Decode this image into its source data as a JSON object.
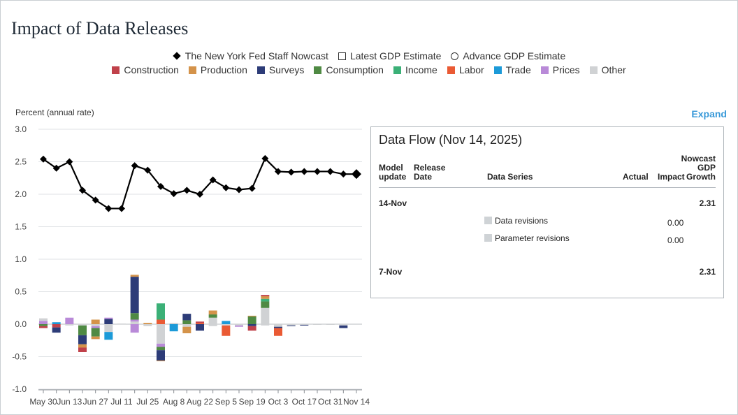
{
  "title": "Impact of Data Releases",
  "expand_label": "Expand",
  "legend_top": [
    {
      "label": "The New York Fed Staff Nowcast",
      "marker": "filled-diamond"
    },
    {
      "label": "Latest GDP Estimate",
      "marker": "open-square"
    },
    {
      "label": "Advance GDP Estimate",
      "marker": "open-circle"
    }
  ],
  "legend_categories": [
    {
      "label": "Construction",
      "color": "#c0414a"
    },
    {
      "label": "Production",
      "color": "#d4934a"
    },
    {
      "label": "Surveys",
      "color": "#2d3c78"
    },
    {
      "label": "Consumption",
      "color": "#4f8a43"
    },
    {
      "label": "Income",
      "color": "#3bb077"
    },
    {
      "label": "Labor",
      "color": "#ea5a34"
    },
    {
      "label": "Trade",
      "color": "#1c9ad8"
    },
    {
      "label": "Prices",
      "color": "#b98ad8"
    },
    {
      "label": "Other",
      "color": "#d0d2d4"
    }
  ],
  "chart_data": {
    "type": "line+stacked-bar",
    "ylabel": "Percent (annual rate)",
    "ylim": [
      -1.0,
      3.0
    ],
    "yticks": [
      "3.0",
      "2.5",
      "2.0",
      "1.5",
      "1.0",
      "0.5",
      "0.0",
      "-0.5",
      "-1.0"
    ],
    "ytick_values": [
      3.0,
      2.5,
      2.0,
      1.5,
      1.0,
      0.5,
      0.0,
      -0.5,
      -1.0
    ],
    "xtick_labels": [
      "May 30",
      "Jun 13",
      "Jun 27",
      "Jul 11",
      "Jul 25",
      "Aug 8",
      "Aug 22",
      "Sep 5",
      "Sep 19",
      "Oct 3",
      "Oct 17",
      "Oct 31",
      "Nov 14"
    ],
    "dates": [
      "May 30",
      "Jun 6",
      "Jun 13",
      "Jun 20",
      "Jun 27",
      "Jul 4",
      "Jul 11",
      "Jul 18",
      "Jul 25",
      "Aug 1",
      "Aug 8",
      "Aug 15",
      "Aug 22",
      "Aug 29",
      "Sep 5",
      "Sep 12",
      "Sep 19",
      "Sep 26",
      "Oct 3",
      "Oct 10",
      "Oct 17",
      "Oct 24",
      "Oct 31",
      "Nov 7",
      "Nov 14"
    ],
    "nowcast": [
      2.54,
      2.4,
      2.5,
      2.06,
      1.91,
      1.78,
      1.78,
      2.44,
      2.37,
      2.12,
      2.01,
      2.06,
      2.0,
      2.22,
      2.1,
      2.07,
      2.09,
      2.55,
      2.35,
      2.34,
      2.35,
      2.35,
      2.35,
      2.31,
      2.31
    ],
    "bars": [
      [
        [
          "Prices",
          0.05
        ],
        [
          "Other",
          0.04
        ],
        [
          "Consumption",
          -0.03
        ],
        [
          "Construction",
          -0.03
        ]
      ],
      [
        [
          "Trade",
          0.03
        ],
        [
          "Construction",
          -0.05
        ],
        [
          "Surveys",
          -0.08
        ]
      ],
      [
        [
          "Prices",
          0.1
        ],
        [
          "Other",
          -0.02
        ]
      ],
      [
        [
          "Other",
          -0.02
        ],
        [
          "Consumption",
          -0.15
        ],
        [
          "Surveys",
          -0.14
        ],
        [
          "Production",
          -0.05
        ],
        [
          "Construction",
          -0.07
        ]
      ],
      [
        [
          "Production",
          0.07
        ],
        [
          "Other",
          -0.03
        ],
        [
          "Prices",
          -0.03
        ],
        [
          "Consumption",
          -0.13
        ],
        [
          "Production",
          -0.04
        ]
      ],
      [
        [
          "Surveys",
          0.08
        ],
        [
          "Prices",
          0.02
        ],
        [
          "Other",
          -0.12
        ],
        [
          "Trade",
          -0.12
        ]
      ],
      [
        [
          "Other",
          0.01
        ]
      ],
      [
        [
          "Other",
          0.04
        ],
        [
          "Prices",
          0.03
        ],
        [
          "Consumption",
          0.1
        ],
        [
          "Surveys",
          0.56
        ],
        [
          "Production",
          0.03
        ],
        [
          "Prices",
          -0.13
        ]
      ],
      [
        [
          "Production",
          0.02
        ],
        [
          "Other",
          -0.03
        ]
      ],
      [
        [
          "Labor",
          0.07
        ],
        [
          "Income",
          0.25
        ],
        [
          "Other",
          -0.3
        ],
        [
          "Prices",
          -0.05
        ],
        [
          "Consumption",
          -0.05
        ],
        [
          "Surveys",
          -0.16
        ],
        [
          "Production",
          -0.01
        ]
      ],
      [
        [
          "Other",
          0.02
        ],
        [
          "Trade",
          -0.11
        ]
      ],
      [
        [
          "Consumption",
          0.06
        ],
        [
          "Surveys",
          0.1
        ],
        [
          "Other",
          -0.04
        ],
        [
          "Production",
          -0.1
        ]
      ],
      [
        [
          "Labor",
          0.02
        ],
        [
          "Construction",
          0.02
        ],
        [
          "Surveys",
          -0.1
        ]
      ],
      [
        [
          "Other",
          0.1
        ],
        [
          "Consumption",
          0.05
        ],
        [
          "Production",
          0.06
        ],
        [
          "Other",
          -0.03
        ]
      ],
      [
        [
          "Trade",
          0.05
        ],
        [
          "Other",
          -0.02
        ],
        [
          "Labor",
          -0.16
        ]
      ],
      [
        [
          "Other",
          -0.02
        ],
        [
          "Prices",
          -0.02
        ]
      ],
      [
        [
          "Consumption",
          0.12
        ],
        [
          "Production",
          0.01
        ],
        [
          "Surveys",
          -0.03
        ],
        [
          "Construction",
          -0.07
        ]
      ],
      [
        [
          "Other",
          0.25
        ],
        [
          "Consumption",
          0.1
        ],
        [
          "Income",
          0.04
        ],
        [
          "Production",
          0.04
        ],
        [
          "Construction",
          0.02
        ],
        [
          "Other",
          -0.02
        ]
      ],
      [
        [
          "Other",
          -0.04
        ],
        [
          "Surveys",
          -0.02
        ],
        [
          "Labor",
          -0.12
        ]
      ],
      [
        [
          "Other",
          -0.02
        ],
        [
          "Surveys",
          -0.01
        ]
      ],
      [
        [
          "Other",
          -0.01
        ],
        [
          "Surveys",
          -0.01
        ]
      ],
      [
        [
          "Other",
          -0.01
        ]
      ],
      [
        [
          "Other",
          -0.01
        ]
      ],
      [
        [
          "Other",
          -0.02
        ],
        [
          "Surveys",
          -0.04
        ]
      ],
      []
    ]
  },
  "data_flow": {
    "title": "Data Flow (Nov 14, 2025)",
    "headers": {
      "model_update": [
        "Model",
        "update"
      ],
      "release_date": [
        "Release",
        "Date"
      ],
      "data_series": "Data Series",
      "actual": "Actual",
      "impact": "Impact",
      "nowcast": [
        "Nowcast",
        "GDP",
        "Growth"
      ]
    },
    "rows": [
      {
        "model_update": "14-Nov",
        "nowcast": "2.31"
      },
      {
        "series": "Data revisions",
        "impact": "0.00"
      },
      {
        "series": "Parameter revisions",
        "impact": "0.00"
      },
      {
        "model_update": "7-Nov",
        "nowcast": "2.31"
      }
    ]
  }
}
